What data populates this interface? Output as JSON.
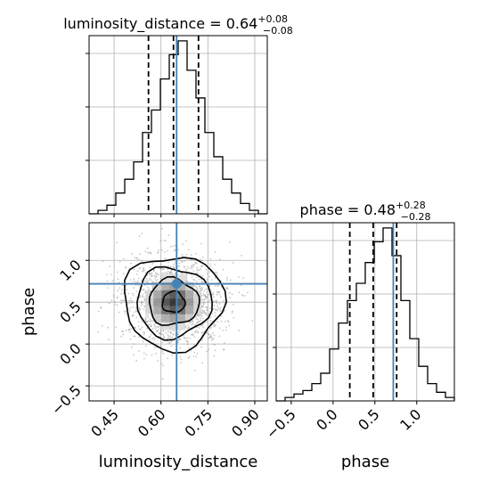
{
  "chart_data": [
    {
      "type": "histogram",
      "panel": "luminosity_distance marginal",
      "title": {
        "name": "luminosity_distance",
        "value": "0.64",
        "upper": "+0.08",
        "lower": "−0.08"
      },
      "xlim": [
        0.37,
        0.94
      ],
      "bin_edges": [
        0.37,
        0.3985,
        0.427,
        0.4555,
        0.484,
        0.5125,
        0.541,
        0.5695,
        0.598,
        0.6265,
        0.655,
        0.6835,
        0.712,
        0.7405,
        0.769,
        0.7975,
        0.826,
        0.8545,
        0.883,
        0.9115,
        0.94
      ],
      "counts": [
        0,
        0.02,
        0.05,
        0.12,
        0.2,
        0.3,
        0.47,
        0.6,
        0.78,
        0.92,
        1.0,
        0.83,
        0.67,
        0.47,
        0.33,
        0.2,
        0.12,
        0.06,
        0.02,
        0
      ],
      "quantiles": [
        0.56,
        0.64,
        0.72
      ],
      "truth": 0.65,
      "grid": true
    },
    {
      "type": "scatter+contour",
      "panel": "luminosity_distance vs phase",
      "xlabel": "luminosity_distance",
      "ylabel": "phase",
      "xlim": [
        0.37,
        0.94
      ],
      "ylim": [
        -0.68,
        1.45
      ],
      "xticks": [
        0.45,
        0.6,
        0.75,
        0.9
      ],
      "xticklabels": [
        "0.45",
        "0.60",
        "0.75",
        "0.90"
      ],
      "yticks": [
        -0.5,
        0.0,
        0.5,
        1.0
      ],
      "yticklabels": [
        "−0.5",
        "0.0",
        "0.5",
        "1.0"
      ],
      "center": {
        "x": 0.64,
        "y": 0.5
      },
      "spread": {
        "x": 0.08,
        "y": 0.28
      },
      "contour_levels": [
        "0.5σ",
        "1σ",
        "1.5σ",
        "2σ"
      ],
      "truth": {
        "x": 0.65,
        "y": 0.72
      },
      "grid": true
    },
    {
      "type": "histogram",
      "panel": "phase marginal",
      "title": {
        "name": "phase",
        "value": "0.48",
        "upper": "+0.28",
        "lower": "−0.28"
      },
      "xlabel": "phase",
      "xlim": [
        -0.68,
        1.45
      ],
      "xticks": [
        -0.5,
        0.0,
        0.5,
        1.0
      ],
      "xticklabels": [
        "−0.5",
        "0.0",
        "0.5",
        "1.0"
      ],
      "bin_edges": [
        -0.68,
        -0.5735,
        -0.467,
        -0.3605,
        -0.254,
        -0.1475,
        -0.041,
        0.0655,
        0.172,
        0.2785,
        0.385,
        0.4915,
        0.598,
        0.7045,
        0.811,
        0.9175,
        1.024,
        1.1305,
        1.237,
        1.3435,
        1.45
      ],
      "counts": [
        0.0,
        0.02,
        0.04,
        0.06,
        0.1,
        0.16,
        0.3,
        0.45,
        0.58,
        0.68,
        0.8,
        0.92,
        1.0,
        0.84,
        0.58,
        0.36,
        0.2,
        0.1,
        0.05,
        0.02
      ],
      "quantiles": [
        0.2,
        0.48,
        0.76
      ],
      "truth": 0.72,
      "grid": true
    }
  ],
  "colors": {
    "line": "#000000",
    "truth": "#4682b4",
    "grid": "#b0b0b0",
    "points": "#9a9a9a"
  }
}
